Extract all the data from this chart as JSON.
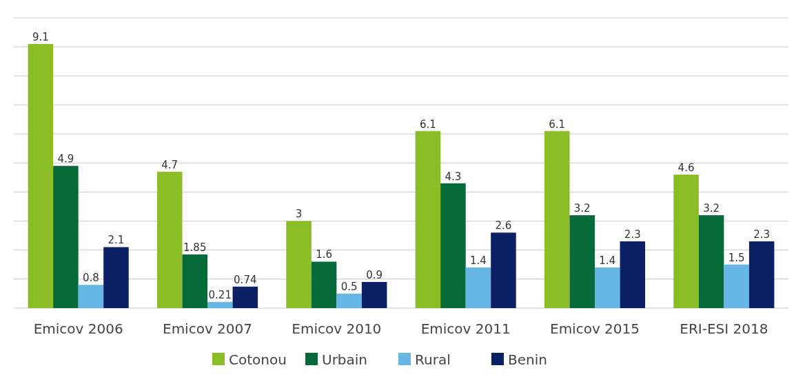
{
  "chart_data": {
    "type": "bar",
    "categories": [
      "Emicov 2006",
      "Emicov 2007",
      "Emicov 2010",
      "Emicov 2011",
      "Emicov 2015",
      "ERI-ESI 2018"
    ],
    "series": [
      {
        "name": "Cotonou",
        "color": "#8bbd27",
        "values": [
          9.1,
          4.7,
          3,
          6.1,
          6.1,
          4.6
        ]
      },
      {
        "name": "Urbain",
        "color": "#066b38",
        "values": [
          4.9,
          1.85,
          1.6,
          4.3,
          3.2,
          3.2
        ]
      },
      {
        "name": "Rural",
        "color": "#66b6e6",
        "values": [
          0.8,
          0.21,
          0.5,
          1.4,
          1.4,
          1.5
        ]
      },
      {
        "name": "Benin",
        "color": "#0c2066",
        "values": [
          2.1,
          0.74,
          0.9,
          2.6,
          2.3,
          2.3
        ]
      }
    ],
    "ylim": [
      0,
      10
    ],
    "yticks": [
      {
        "value": 0,
        "label": null
      },
      {
        "value": 1,
        "label": null
      },
      {
        "value": 2,
        "label": null
      },
      {
        "value": 3,
        "label": null
      },
      {
        "value": 4,
        "label": null
      },
      {
        "value": 5,
        "label": null
      },
      {
        "value": 6,
        "label": null
      },
      {
        "value": 7,
        "label": null
      },
      {
        "value": 8,
        "label": null
      },
      {
        "value": 9,
        "label": null
      },
      {
        "value": 10,
        "label": null
      }
    ],
    "tick_labels": "x",
    "grid": "y",
    "data_labels": true,
    "legend": "bottom"
  }
}
